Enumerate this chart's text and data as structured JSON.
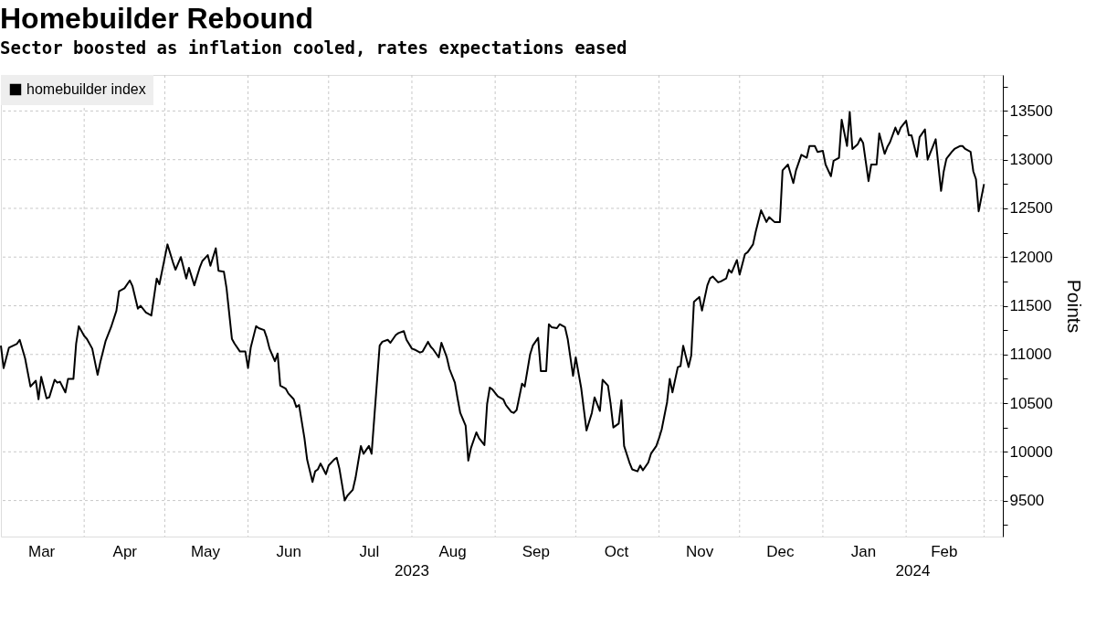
{
  "chart_data": {
    "type": "line",
    "title": "Homebuilder Rebound",
    "subtitle": "Sector boosted as inflation cooled, rates expectations eased",
    "ylabel": "Points",
    "xlim": [
      "2023-03-01",
      "2024-03-08"
    ],
    "ylim": [
      9130,
      13870
    ],
    "yticks": [
      {
        "value": 9250,
        "label": null
      },
      9500,
      {
        "value": 9750,
        "label": null
      },
      10000,
      {
        "value": 10250,
        "label": null
      },
      10500,
      {
        "value": 10750,
        "label": null
      },
      11000,
      {
        "value": 11250,
        "label": null
      },
      11500,
      {
        "value": 11750,
        "label": null
      },
      12000,
      {
        "value": 12250,
        "label": null
      },
      12500,
      {
        "value": 12750,
        "label": null
      },
      13000,
      {
        "value": 13250,
        "label": null
      },
      13500,
      {
        "value": 13750,
        "label": null
      }
    ],
    "xticks": [
      {
        "value": "2023-03-16",
        "label": "Mar"
      },
      {
        "value": "2023-04-01",
        "label": null
      },
      {
        "value": "2023-04-16",
        "label": "Apr"
      },
      {
        "value": "2023-05-01",
        "label": null
      },
      {
        "value": "2023-05-16",
        "label": "May"
      },
      {
        "value": "2023-06-01",
        "label": null
      },
      {
        "value": "2023-06-16",
        "label": "Jun"
      },
      {
        "value": "2023-07-01",
        "label": null
      },
      {
        "value": "2023-07-16",
        "label": "Jul"
      },
      {
        "value": "2023-08-01",
        "label": null
      },
      {
        "value": "2023-08-16",
        "label": "Aug"
      },
      {
        "value": "2023-09-01",
        "label": null
      },
      {
        "value": "2023-09-16",
        "label": "Sep"
      },
      {
        "value": "2023-10-01",
        "label": null
      },
      {
        "value": "2023-10-16",
        "label": "Oct"
      },
      {
        "value": "2023-11-01",
        "label": null
      },
      {
        "value": "2023-11-16",
        "label": "Nov"
      },
      {
        "value": "2023-12-01",
        "label": null
      },
      {
        "value": "2023-12-16",
        "label": "Dec"
      },
      {
        "value": "2024-01-01",
        "label": null
      },
      {
        "value": "2024-01-16",
        "label": "Jan"
      },
      {
        "value": "2024-02-01",
        "label": null
      },
      {
        "value": "2024-02-15",
        "label": "Feb"
      },
      {
        "value": "2024-03-01",
        "label": null
      }
    ],
    "annotations": [
      "2023",
      "2024"
    ],
    "grid": true,
    "line_style": "solid",
    "legend": "top left",
    "x": [
      "2023-03-01",
      "2023-03-02",
      "2023-03-04",
      "2023-03-07",
      "2023-03-08",
      "2023-03-10",
      "2023-03-12",
      "2023-03-14",
      "2023-03-15",
      "2023-03-16",
      "2023-03-18",
      "2023-03-19",
      "2023-03-21",
      "2023-03-22",
      "2023-03-23",
      "2023-03-25",
      "2023-03-26",
      "2023-03-28",
      "2023-03-29",
      "2023-03-30",
      "2023-04-01",
      "2023-04-02",
      "2023-04-04",
      "2023-04-06",
      "2023-04-07",
      "2023-04-09",
      "2023-04-11",
      "2023-04-13",
      "2023-04-14",
      "2023-04-16",
      "2023-04-18",
      "2023-04-19",
      "2023-04-21",
      "2023-04-22",
      "2023-04-24",
      "2023-04-26",
      "2023-04-28",
      "2023-04-29",
      "2023-05-02",
      "2023-05-04",
      "2023-05-05",
      "2023-05-07",
      "2023-05-09",
      "2023-05-10",
      "2023-05-12",
      "2023-05-14",
      "2023-05-15",
      "2023-05-17",
      "2023-05-18",
      "2023-05-20",
      "2023-05-21",
      "2023-05-23",
      "2023-05-24",
      "2023-05-26",
      "2023-05-27",
      "2023-05-29",
      "2023-05-31",
      "2023-06-01",
      "2023-06-02",
      "2023-06-04",
      "2023-06-05",
      "2023-06-07",
      "2023-06-08",
      "2023-06-09",
      "2023-06-11",
      "2023-06-12",
      "2023-06-13",
      "2023-06-15",
      "2023-06-16",
      "2023-06-18",
      "2023-06-19",
      "2023-06-20",
      "2023-06-22",
      "2023-06-23",
      "2023-06-25",
      "2023-06-26",
      "2023-06-27",
      "2023-06-28",
      "2023-06-30",
      "2023-07-01",
      "2023-07-03",
      "2023-07-04",
      "2023-07-05",
      "2023-07-07",
      "2023-07-08",
      "2023-07-10",
      "2023-07-11",
      "2023-07-13",
      "2023-07-14",
      "2023-07-16",
      "2023-07-17",
      "2023-07-20",
      "2023-07-21",
      "2023-07-23",
      "2023-07-24",
      "2023-07-26",
      "2023-07-27",
      "2023-07-29",
      "2023-07-30",
      "2023-08-01",
      "2023-08-02",
      "2023-08-04",
      "2023-08-05",
      "2023-08-07",
      "2023-08-08",
      "2023-08-09",
      "2023-08-11",
      "2023-08-12",
      "2023-08-14",
      "2023-08-15",
      "2023-08-17",
      "2023-08-18",
      "2023-08-19",
      "2023-08-21",
      "2023-08-22",
      "2023-08-23",
      "2023-08-25",
      "2023-08-26",
      "2023-08-28",
      "2023-08-29",
      "2023-08-30",
      "2023-08-31",
      "2023-09-02",
      "2023-09-04",
      "2023-09-05",
      "2023-09-07",
      "2023-09-08",
      "2023-09-09",
      "2023-09-11",
      "2023-09-12",
      "2023-09-14",
      "2023-09-15",
      "2023-09-17",
      "2023-09-18",
      "2023-09-20",
      "2023-09-21",
      "2023-09-22",
      "2023-09-24",
      "2023-09-25",
      "2023-09-27",
      "2023-09-28",
      "2023-09-30",
      "2023-10-01",
      "2023-10-03",
      "2023-10-04",
      "2023-10-05",
      "2023-10-07",
      "2023-10-08",
      "2023-10-10",
      "2023-10-11",
      "2023-10-13",
      "2023-10-14",
      "2023-10-15",
      "2023-10-17",
      "2023-10-18",
      "2023-10-19",
      "2023-10-21",
      "2023-10-22",
      "2023-10-24",
      "2023-10-25",
      "2023-10-26",
      "2023-10-28",
      "2023-10-29",
      "2023-10-31",
      "2023-11-01",
      "2023-11-02",
      "2023-11-04",
      "2023-11-05",
      "2023-11-06",
      "2023-11-08",
      "2023-11-09",
      "2023-11-10",
      "2023-11-12",
      "2023-11-13",
      "2023-11-14",
      "2023-11-16",
      "2023-11-17",
      "2023-11-19",
      "2023-11-20",
      "2023-11-21",
      "2023-11-23",
      "2023-11-24",
      "2023-11-26",
      "2023-11-27",
      "2023-11-28",
      "2023-11-30",
      "2023-12-01",
      "2023-12-03",
      "2023-12-04",
      "2023-12-06",
      "2023-12-07",
      "2023-12-09",
      "2023-12-11",
      "2023-12-12",
      "2023-12-14",
      "2023-12-16",
      "2023-12-17",
      "2023-12-19",
      "2023-12-21",
      "2023-12-22",
      "2023-12-24",
      "2023-12-26",
      "2023-12-27",
      "2023-12-29",
      "2023-12-30",
      "2024-01-01",
      "2024-01-02",
      "2024-01-04",
      "2024-01-05",
      "2024-01-07",
      "2024-01-08",
      "2024-01-10",
      "2024-01-11",
      "2024-01-12",
      "2024-01-14",
      "2024-01-15",
      "2024-01-16",
      "2024-01-18",
      "2024-01-19",
      "2024-01-21",
      "2024-01-22",
      "2024-01-24",
      "2024-01-25",
      "2024-01-26",
      "2024-01-28",
      "2024-01-29",
      "2024-01-30",
      "2024-02-01",
      "2024-02-02",
      "2024-02-03",
      "2024-02-05",
      "2024-02-06",
      "2024-02-08",
      "2024-02-09",
      "2024-02-11",
      "2024-02-12",
      "2024-02-14",
      "2024-02-15",
      "2024-02-16",
      "2024-02-18",
      "2024-02-19",
      "2024-02-21",
      "2024-02-22",
      "2024-02-23",
      "2024-02-25",
      "2024-02-26",
      "2024-02-27",
      "2024-02-28",
      "2024-03-01"
    ],
    "series": [
      {
        "name": "homebuilder index",
        "color": "#000000",
        "values": [
          11090,
          10860,
          11070,
          11110,
          11150,
          10960,
          10670,
          10730,
          10540,
          10770,
          10550,
          10560,
          10740,
          10710,
          10720,
          10610,
          10750,
          10750,
          11110,
          11290,
          11190,
          11160,
          11060,
          10790,
          10920,
          11140,
          11280,
          11450,
          11650,
          11680,
          11760,
          11700,
          11470,
          11500,
          11430,
          11400,
          11780,
          11720,
          12130,
          11950,
          11870,
          12000,
          11780,
          11890,
          11710,
          11890,
          11960,
          12020,
          11910,
          12090,
          11860,
          11850,
          11680,
          11160,
          11110,
          11030,
          11030,
          10860,
          11070,
          11290,
          11270,
          11250,
          11170,
          11060,
          10930,
          11010,
          10680,
          10650,
          10600,
          10540,
          10460,
          10480,
          10140,
          9920,
          9690,
          9800,
          9820,
          9880,
          9770,
          9860,
          9920,
          9940,
          9830,
          9500,
          9550,
          9610,
          9730,
          10060,
          9980,
          10060,
          9980,
          11090,
          11130,
          11150,
          11120,
          11200,
          11220,
          11240,
          11150,
          11060,
          11050,
          11020,
          11030,
          11130,
          11080,
          11050,
          10970,
          11120,
          10970,
          10850,
          10710,
          10550,
          10400,
          10270,
          9910,
          10040,
          10200,
          10140,
          10070,
          10490,
          10660,
          10640,
          10570,
          10540,
          10480,
          10410,
          10400,
          10430,
          10700,
          10670,
          11000,
          11090,
          11170,
          10830,
          10830,
          11310,
          11280,
          11270,
          11310,
          11280,
          11160,
          10780,
          10970,
          10660,
          10440,
          10220,
          10400,
          10560,
          10420,
          10740,
          10680,
          10490,
          10250,
          10290,
          10530,
          10060,
          9890,
          9820,
          9800,
          9860,
          9810,
          9890,
          9980,
          10060,
          10140,
          10230,
          10510,
          10750,
          10610,
          10870,
          10880,
          11090,
          10870,
          10990,
          11540,
          11590,
          11450,
          11710,
          11780,
          11800,
          11740,
          11750,
          11780,
          11870,
          11840,
          11970,
          11820,
          12030,
          12050,
          12130,
          12260,
          12480,
          12360,
          12410,
          12360,
          12360,
          12890,
          12950,
          12760,
          12890,
          13050,
          13020,
          13140,
          13140,
          13080,
          13090,
          12950,
          12830,
          12990,
          13020,
          13410,
          13140,
          13490,
          13110,
          13160,
          13220,
          13170,
          12780,
          12950,
          12950,
          13270,
          13060,
          13130,
          13180,
          13330,
          13260,
          13330,
          13400,
          13250,
          13250,
          13030,
          13230,
          13310,
          13000,
          13140,
          13210,
          12680,
          12880,
          13010,
          13080,
          13110,
          13140,
          13140,
          13110,
          13080,
          12880,
          12800,
          12470,
          12750
        ]
      }
    ]
  }
}
